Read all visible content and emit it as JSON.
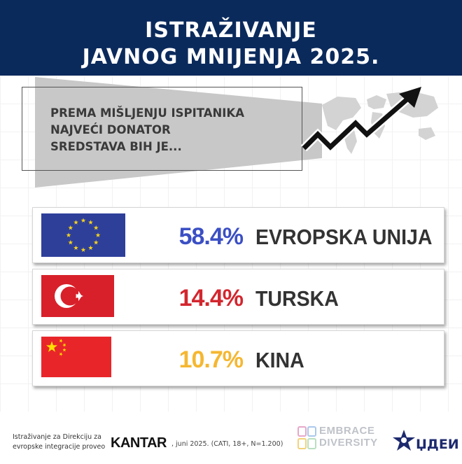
{
  "header": {
    "line1": "ISTRAŽIVANJE",
    "line2": "JAVNOG MNIJENJA 2025."
  },
  "question": {
    "line1": "PREMA MIŠLJENJU ISPITANIKA",
    "line2": "NAJVEĆI DONATOR",
    "line3": "SREDSTAVA BIH JE..."
  },
  "chart_data": {
    "type": "table",
    "categories": [
      "EVROPSKA UNIJA",
      "TURSKA",
      "KINA"
    ],
    "values": [
      58.4,
      14.4,
      10.7
    ],
    "labels": [
      "58.4%",
      "14.4%",
      "10.7%"
    ],
    "colors": [
      "#3b4fc4",
      "#d3262e",
      "#f5b731"
    ]
  },
  "rows": [
    {
      "flag_icon": "eu-flag-icon",
      "pct": "58.4%",
      "name": "EVROPSKA UNIJA",
      "color": "#3b4fc4"
    },
    {
      "flag_icon": "turkey-flag-icon",
      "pct": "14.4%",
      "name": "TURSKA",
      "color": "#d3262e"
    },
    {
      "flag_icon": "china-flag-icon",
      "pct": "10.7%",
      "name": "KINA",
      "color": "#f5b731"
    }
  ],
  "footer": {
    "line1": "Istraživanje za Direkciju za",
    "line2": "evropske integracije proveo",
    "kantar": "KANTAR",
    "kantar_note": ", juni 2025. (CATI, 18+, N=1.200)",
    "embrace1": "EMBRACE",
    "embrace2": "DIVERSITY",
    "cden": "ЏДЕИ"
  }
}
